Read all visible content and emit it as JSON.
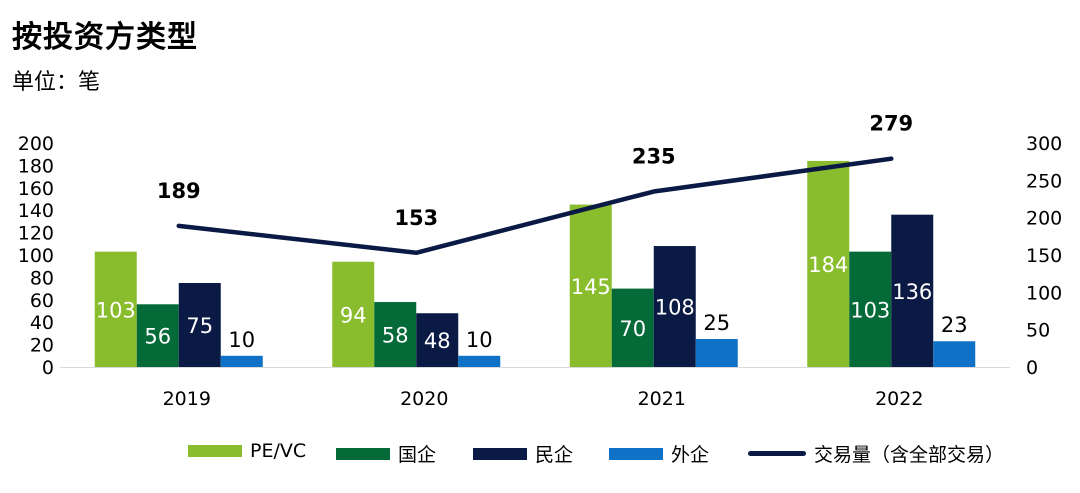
{
  "title": "按投资方类型",
  "unit_label": "单位：笔",
  "chart_data": {
    "type": "bar",
    "categories": [
      "2019",
      "2020",
      "2021",
      "2022"
    ],
    "series": [
      {
        "name": "PE/VC",
        "values": [
          103,
          94,
          145,
          184
        ],
        "color": "#8ABD2E",
        "label_color": "#ffffff",
        "label_pos": "inside"
      },
      {
        "name": "国企",
        "values": [
          56,
          58,
          70,
          103
        ],
        "color": "#046A38",
        "label_color": "#ffffff",
        "label_pos": "inside"
      },
      {
        "name": "民企",
        "values": [
          75,
          48,
          108,
          136
        ],
        "color": "#0B1A44",
        "label_color": "#ffffff",
        "label_pos": "inside"
      },
      {
        "name": "外企",
        "values": [
          10,
          10,
          25,
          23
        ],
        "color": "#0F72C6",
        "label_color": "#000000",
        "label_pos": "above"
      }
    ],
    "line_series": {
      "name": "交易量（含全部交易）",
      "values": [
        189,
        153,
        235,
        279
      ],
      "color": "#0B1A44",
      "axis": "right"
    },
    "y_left": {
      "min": 0,
      "max": 200,
      "ticks": [
        "0",
        "20",
        "40",
        "60",
        "80",
        "100",
        "120",
        "140",
        "160",
        "180",
        "200"
      ]
    },
    "y_right": {
      "min": 0,
      "max": 300,
      "ticks": [
        "0",
        "50",
        "100",
        "150",
        "200",
        "250",
        "300"
      ]
    },
    "legend_position": "bottom"
  }
}
